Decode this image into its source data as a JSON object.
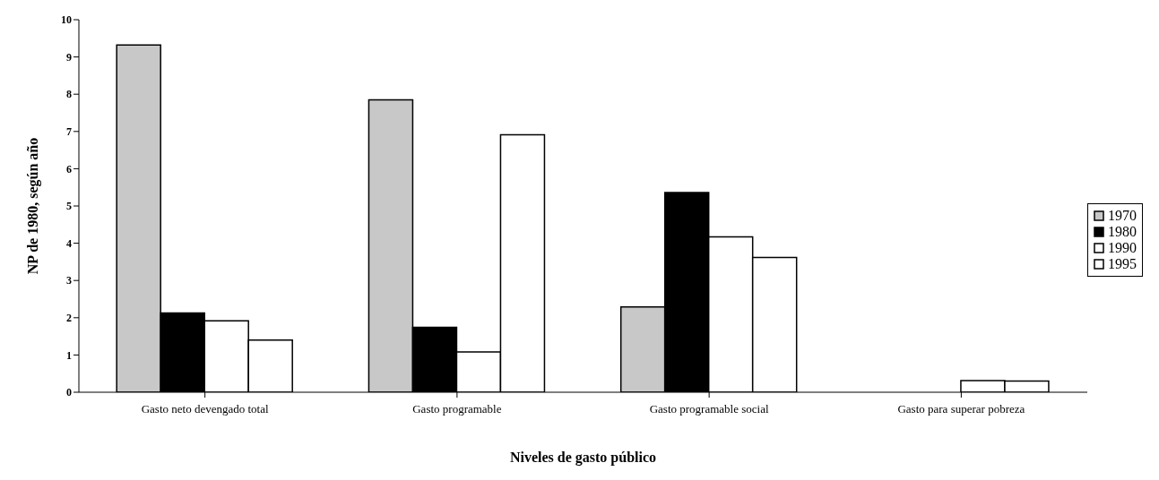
{
  "chart_data": {
    "type": "bar",
    "xlabel": "Niveles de gasto público",
    "ylabel": "NP de 1980, según año",
    "categories": [
      "Gasto neto devengado total",
      "Gasto programable",
      "Gasto programable social",
      "Gasto para superar pobreza"
    ],
    "series": [
      {
        "name": "1970",
        "color": "#c8c8c8",
        "values": [
          9.32,
          7.85,
          2.29,
          0
        ]
      },
      {
        "name": "1980",
        "color": "#000000",
        "values": [
          2.13,
          1.74,
          5.36,
          0
        ]
      },
      {
        "name": "1990",
        "color": "#ffffff",
        "values": [
          1.92,
          1.08,
          4.17,
          0.31
        ]
      },
      {
        "name": "1995",
        "color": "#ffffff",
        "values": [
          1.4,
          6.91,
          3.62,
          0.3
        ]
      }
    ],
    "ylim": [
      0,
      10
    ],
    "yticks": [
      0,
      1,
      2,
      3,
      4,
      5,
      6,
      7,
      8,
      9,
      10
    ],
    "grid": false,
    "legend": "right"
  }
}
